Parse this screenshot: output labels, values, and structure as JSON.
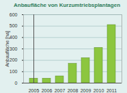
{
  "chart_data": {
    "type": "bar",
    "title": "Anbaufläche von Kurzumtriebsplantagen",
    "y_label": "Anbaufläche [ha]",
    "categories": [
      "2005",
      "2006",
      "2007",
      "2008",
      "2009",
      "2010",
      "2011"
    ],
    "values": [
      40,
      40,
      60,
      170,
      220,
      310,
      510
    ],
    "color": "#8cc63f",
    "ylim": [
      0,
      600
    ],
    "yticks": [
      0,
      100,
      200,
      300,
      400,
      500,
      600
    ],
    "grid": true
  }
}
